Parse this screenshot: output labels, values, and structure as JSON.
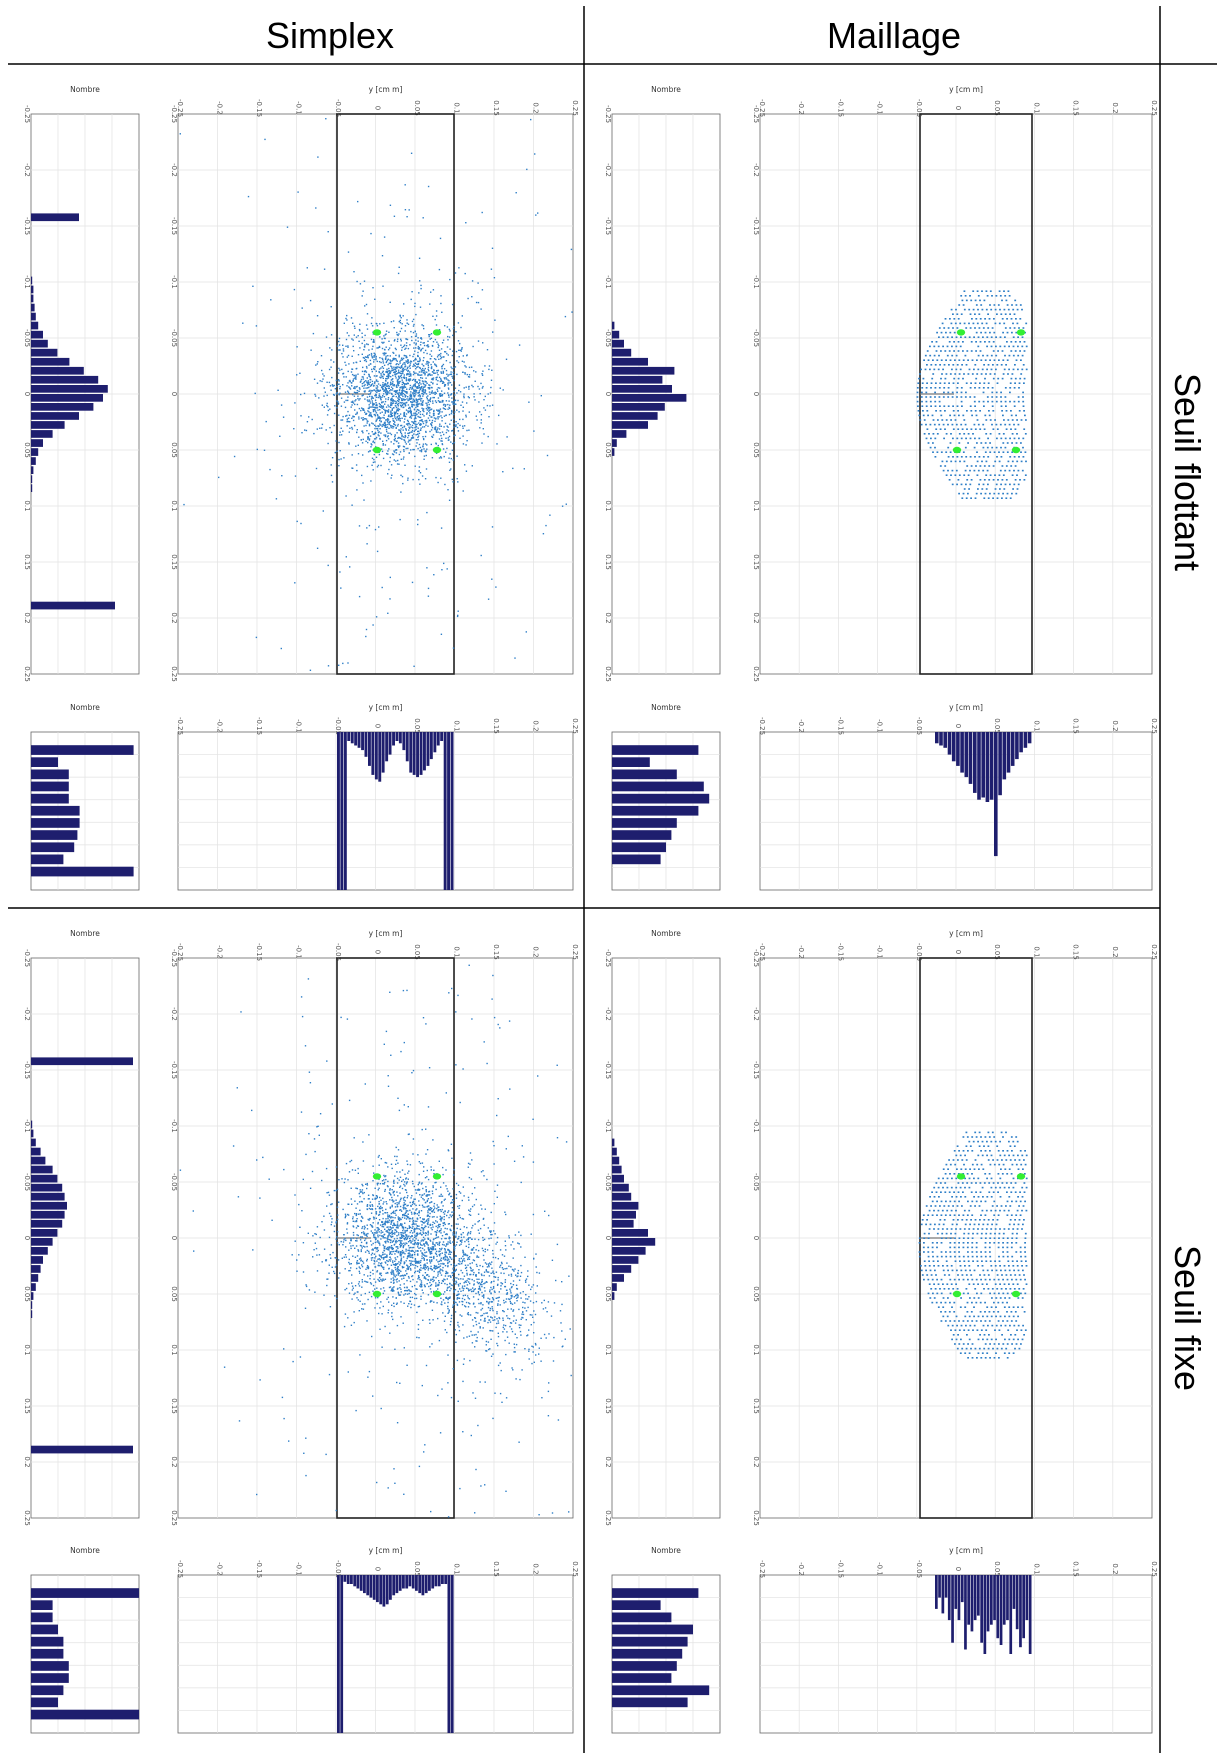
{
  "headers": {
    "columns": [
      "Simplex",
      "Maillage"
    ],
    "rows": [
      "Seuil flottant",
      "Seuil fixe"
    ]
  },
  "axis_labels": {
    "y_cm": "y [cm m]",
    "count": "Nombre",
    "counts_small": "Nombre"
  },
  "colors": {
    "scatter": "#2f7fc7",
    "marker": "#33ee33",
    "bar": "#1e1e6e",
    "grid": "#e2e2e2",
    "rect": "#222222"
  },
  "chart_data": [
    {
      "type": "scatter",
      "panel": "Simplex / Seuil flottant",
      "point_count": 2600,
      "spread": "wide",
      "markers": [
        [
          -0.05,
          -0.005
        ],
        [
          0.05,
          -0.005
        ],
        [
          -0.05,
          0.06
        ],
        [
          0.05,
          0.06
        ]
      ],
      "x_ticks": [
        "-0.25",
        "-0.2",
        "-0.15",
        "-0.1",
        "-0.05",
        "0",
        "0.05",
        "0.1",
        "0.15",
        "0.2",
        "0.25"
      ],
      "y_ticks": [
        "-0.25",
        "-0.2",
        "-0.15",
        "-0.1",
        "-0.05",
        "0",
        "0.05",
        "0.1",
        "0.15",
        "0.2",
        "0.25"
      ],
      "ylim": [
        -0.25,
        0.25
      ],
      "xlim": [
        -0.25,
        0.25
      ]
    },
    {
      "type": "scatter",
      "panel": "Maillage / Seuil flottant",
      "point_count": 0,
      "spread": "grid",
      "markers": [
        [
          -0.05,
          -0.005
        ],
        [
          0.05,
          -0.005
        ],
        [
          -0.05,
          0.06
        ],
        [
          0.05,
          0.06
        ]
      ]
    },
    {
      "type": "scatter",
      "panel": "Simplex / Seuil fixe",
      "point_count": 3000,
      "spread": "tail",
      "markers": [
        [
          -0.05,
          -0.005
        ],
        [
          0.05,
          -0.005
        ],
        [
          -0.05,
          0.06
        ],
        [
          0.05,
          0.06
        ]
      ]
    },
    {
      "type": "scatter",
      "panel": "Maillage / Seuil fixe",
      "point_count": 0,
      "spread": "grid",
      "markers": [
        [
          -0.05,
          -0.005
        ],
        [
          0.05,
          -0.005
        ],
        [
          -0.05,
          0.06
        ],
        [
          0.05,
          0.06
        ]
      ]
    },
    {
      "type": "bar",
      "panel": "side histograms",
      "series": [
        {
          "panel": "Simplex / Seuil flottant",
          "values": [
            0,
            0,
            0,
            0,
            0,
            0,
            0,
            0,
            0,
            0,
            0,
            40,
            0,
            0,
            0,
            0,
            0,
            0,
            1,
            2,
            2,
            3,
            4,
            6,
            10,
            14,
            22,
            32,
            44,
            56,
            64,
            60,
            52,
            40,
            28,
            18,
            10,
            6,
            4,
            2,
            1,
            1,
            0,
            0,
            0,
            0,
            0,
            0,
            0,
            0,
            0,
            0,
            0,
            0,
            70,
            0,
            0,
            0,
            0,
            0,
            0,
            0
          ]
        },
        {
          "panel": "Maillage / Seuil flottant",
          "values": [
            0,
            0,
            0,
            0,
            0,
            0,
            0,
            0,
            0,
            0,
            0,
            0,
            0,
            0,
            0,
            0,
            0,
            0,
            0,
            0,
            0,
            0,
            0,
            2,
            6,
            10,
            16,
            30,
            52,
            42,
            50,
            62,
            44,
            38,
            30,
            12,
            4,
            2,
            0,
            0,
            0,
            0,
            0,
            0,
            0,
            0,
            0,
            0,
            0,
            0,
            0,
            0,
            0,
            0,
            0,
            0,
            0,
            0,
            0,
            0,
            0,
            0
          ]
        },
        {
          "panel": "Simplex / Seuil fixe",
          "values": [
            0,
            0,
            0,
            0,
            0,
            0,
            0,
            0,
            0,
            0,
            0,
            85,
            0,
            0,
            0,
            0,
            0,
            0,
            1,
            2,
            4,
            8,
            12,
            18,
            22,
            26,
            28,
            30,
            28,
            26,
            22,
            18,
            14,
            10,
            8,
            6,
            4,
            2,
            1,
            1,
            0,
            0,
            0,
            0,
            0,
            0,
            0,
            0,
            0,
            0,
            0,
            0,
            0,
            0,
            85,
            0,
            0,
            0,
            0,
            0,
            0,
            0
          ]
        },
        {
          "panel": "Maillage / Seuil fixe",
          "values": [
            0,
            0,
            0,
            0,
            0,
            0,
            0,
            0,
            0,
            0,
            0,
            0,
            0,
            0,
            0,
            0,
            0,
            0,
            0,
            0,
            2,
            4,
            6,
            8,
            10,
            14,
            16,
            22,
            20,
            18,
            30,
            36,
            28,
            22,
            16,
            10,
            4,
            2,
            0,
            0,
            0,
            0,
            0,
            0,
            0,
            0,
            0,
            0,
            0,
            0,
            0,
            0,
            0,
            0,
            0,
            0,
            0,
            0,
            0,
            0,
            0,
            0
          ]
        }
      ]
    },
    {
      "type": "bar",
      "panel": "bottom profiles",
      "series": [
        {
          "panel": "Simplex / Seuil flottant",
          "values": [
            140,
            140,
            140,
            8,
            10,
            12,
            14,
            16,
            22,
            30,
            38,
            42,
            44,
            36,
            26,
            20,
            12,
            8,
            10,
            16,
            26,
            36,
            38,
            40,
            38,
            34,
            30,
            24,
            18,
            12,
            8,
            140,
            140,
            140
          ]
        },
        {
          "panel": "Maillage / Seuil flottant",
          "values": [
            10,
            12,
            14,
            20,
            26,
            30,
            36,
            40,
            46,
            54,
            60,
            58,
            62,
            60,
            110,
            56,
            42,
            36,
            30,
            24,
            18,
            14,
            10
          ]
        },
        {
          "panel": "Simplex / Seuil fixe",
          "values": [
            140,
            140,
            6,
            8,
            8,
            10,
            12,
            14,
            16,
            18,
            20,
            22,
            24,
            26,
            28,
            26,
            22,
            18,
            16,
            14,
            12,
            12,
            10,
            12,
            14,
            16,
            18,
            16,
            14,
            12,
            10,
            10,
            8,
            8,
            140,
            140
          ]
        },
        {
          "panel": "Maillage / Seuil fixe",
          "values": [
            30,
            20,
            34,
            20,
            40,
            60,
            30,
            40,
            24,
            66,
            44,
            50,
            40,
            36,
            60,
            70,
            50,
            44,
            40,
            56,
            62,
            44,
            40,
            70,
            30,
            48,
            64,
            56,
            40,
            70
          ]
        }
      ]
    },
    {
      "type": "bar",
      "panel": "small corner histograms",
      "series": [
        {
          "panel": "Simplex / Seuil flottant",
          "values": [
            0,
            95,
            25,
            35,
            35,
            35,
            45,
            45,
            43,
            40,
            30,
            95,
            0
          ]
        },
        {
          "panel": "Maillage / Seuil flottant",
          "values": [
            0,
            80,
            35,
            60,
            85,
            90,
            80,
            60,
            55,
            50,
            45,
            0,
            0
          ]
        },
        {
          "panel": "Simplex / Seuil fixe",
          "values": [
            0,
            100,
            20,
            20,
            25,
            30,
            30,
            35,
            35,
            30,
            25,
            100,
            0
          ]
        },
        {
          "panel": "Maillage / Seuil fixe",
          "values": [
            0,
            80,
            45,
            55,
            75,
            70,
            65,
            60,
            55,
            90,
            70,
            0,
            0
          ]
        }
      ]
    }
  ]
}
